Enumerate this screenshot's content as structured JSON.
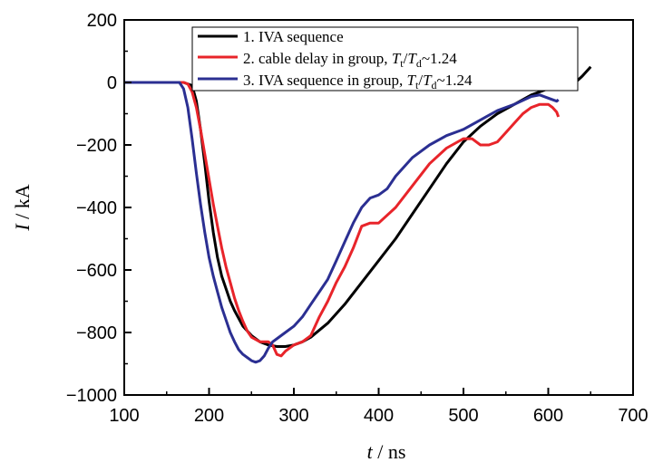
{
  "chart_data": {
    "type": "line",
    "xlabel": {
      "var": "t",
      "unit": " / ns"
    },
    "ylabel": {
      "var": "I",
      "unit": " / kA"
    },
    "xlim": [
      100,
      700
    ],
    "ylim": [
      -1000,
      200
    ],
    "xticks": [
      "100",
      "200",
      "300",
      "400",
      "500",
      "600",
      "700"
    ],
    "yticks": [
      "200",
      "0",
      "−200",
      "−400",
      "−600",
      "−800",
      "−1000"
    ],
    "grid": false,
    "legend_position": "top-right",
    "series": [
      {
        "name": "1. IVA sequence",
        "legend_parts": {
          "prefix": "1. IVA sequence"
        },
        "color": "#000000",
        "x": [
          100,
          170,
          180,
          185,
          190,
          195,
          200,
          205,
          210,
          215,
          220,
          225,
          230,
          240,
          250,
          260,
          270,
          280,
          290,
          300,
          310,
          320,
          340,
          360,
          380,
          400,
          420,
          440,
          460,
          480,
          500,
          520,
          540,
          560,
          580,
          600,
          620,
          630,
          640,
          650
        ],
        "y": [
          0,
          0,
          -10,
          -60,
          -150,
          -260,
          -380,
          -480,
          -560,
          -620,
          -660,
          -700,
          -730,
          -780,
          -810,
          -830,
          -840,
          -845,
          -845,
          -840,
          -830,
          -815,
          -770,
          -710,
          -640,
          -570,
          -500,
          -420,
          -340,
          -260,
          -190,
          -140,
          -100,
          -70,
          -40,
          -20,
          -10,
          -5,
          20,
          50
        ]
      },
      {
        "name": "2. cable delay in group, Tt/Td~1.24",
        "legend_parts": {
          "prefix": "2. cable delay in group, ",
          "tail": "~1.24"
        },
        "color": "#e8242a",
        "x": [
          100,
          170,
          175,
          180,
          185,
          190,
          195,
          200,
          205,
          210,
          215,
          220,
          225,
          230,
          235,
          240,
          245,
          250,
          260,
          270,
          275,
          280,
          285,
          290,
          300,
          310,
          320,
          330,
          340,
          350,
          360,
          370,
          380,
          390,
          400,
          420,
          440,
          460,
          480,
          500,
          510,
          520,
          530,
          540,
          550,
          560,
          570,
          580,
          590,
          600,
          605,
          610,
          612
        ],
        "y": [
          0,
          0,
          -5,
          -30,
          -80,
          -150,
          -230,
          -310,
          -390,
          -460,
          -530,
          -590,
          -640,
          -690,
          -730,
          -765,
          -795,
          -815,
          -830,
          -830,
          -840,
          -870,
          -875,
          -860,
          -840,
          -830,
          -810,
          -750,
          -700,
          -640,
          -590,
          -530,
          -460,
          -450,
          -450,
          -400,
          -330,
          -260,
          -210,
          -180,
          -180,
          -200,
          -200,
          -190,
          -160,
          -130,
          -100,
          -80,
          -70,
          -70,
          -80,
          -95,
          -110
        ]
      },
      {
        "name": "3. IVA sequence in group, Tt/Td~1.24",
        "legend_parts": {
          "prefix": "3. IVA sequence in group, ",
          "tail": "~1.24"
        },
        "color": "#2b2f92",
        "x": [
          100,
          165,
          170,
          175,
          180,
          185,
          190,
          195,
          200,
          205,
          210,
          215,
          220,
          225,
          230,
          235,
          240,
          245,
          250,
          255,
          260,
          265,
          270,
          275,
          280,
          290,
          300,
          310,
          320,
          330,
          340,
          350,
          360,
          370,
          380,
          390,
          400,
          410,
          420,
          440,
          460,
          480,
          500,
          520,
          540,
          560,
          580,
          590,
          600,
          610,
          612
        ],
        "y": [
          0,
          0,
          -20,
          -80,
          -180,
          -290,
          -390,
          -480,
          -560,
          -620,
          -670,
          -720,
          -760,
          -800,
          -830,
          -855,
          -870,
          -880,
          -890,
          -895,
          -890,
          -875,
          -850,
          -830,
          -820,
          -800,
          -780,
          -750,
          -710,
          -670,
          -630,
          -570,
          -510,
          -450,
          -400,
          -370,
          -360,
          -340,
          -300,
          -240,
          -200,
          -170,
          -150,
          -120,
          -90,
          -70,
          -45,
          -40,
          -50,
          -60,
          -55
        ]
      }
    ]
  }
}
